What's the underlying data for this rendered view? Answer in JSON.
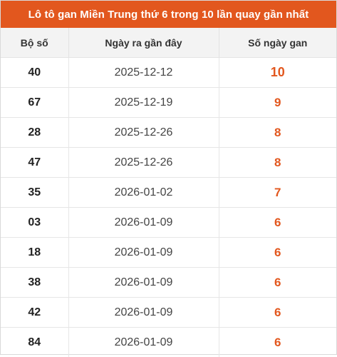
{
  "title": "Lô tô gan Miền Trung thứ 6 trong 10 lần quay gần nhất",
  "columns": [
    "Bộ số",
    "Ngày ra gần đây",
    "Số ngày gan"
  ],
  "accent_color": "#e2571e",
  "rows": [
    {
      "number": "40",
      "date": "2025-12-12",
      "days": "10"
    },
    {
      "number": "67",
      "date": "2025-12-19",
      "days": "9"
    },
    {
      "number": "28",
      "date": "2025-12-26",
      "days": "8"
    },
    {
      "number": "47",
      "date": "2025-12-26",
      "days": "8"
    },
    {
      "number": "35",
      "date": "2026-01-02",
      "days": "7"
    },
    {
      "number": "03",
      "date": "2026-01-09",
      "days": "6"
    },
    {
      "number": "18",
      "date": "2026-01-09",
      "days": "6"
    },
    {
      "number": "38",
      "date": "2026-01-09",
      "days": "6"
    },
    {
      "number": "42",
      "date": "2026-01-09",
      "days": "6"
    },
    {
      "number": "84",
      "date": "2026-01-09",
      "days": "6"
    }
  ]
}
